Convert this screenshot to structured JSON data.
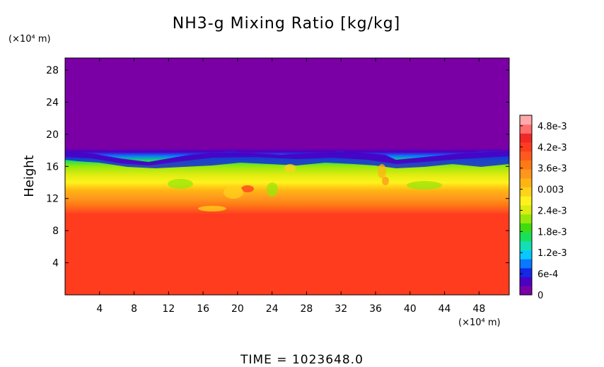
{
  "chart_data": {
    "type": "heatmap",
    "title": "NH3-g Mixing Ratio [kg/kg]",
    "xlabel": "",
    "ylabel": "Height",
    "x_unit_label": "(×10⁴ m)",
    "y_unit_label": "(×10⁴ m)",
    "xlim": [
      0,
      51.5
    ],
    "ylim": [
      0,
      29.5
    ],
    "x_ticks": [
      4,
      8,
      12,
      16,
      20,
      24,
      28,
      32,
      36,
      40,
      44,
      48
    ],
    "y_ticks": [
      4,
      8,
      12,
      16,
      20,
      24,
      28
    ],
    "x_tick_labels": [
      "4",
      "8",
      "12",
      "16",
      "20",
      "24",
      "28",
      "32",
      "36",
      "40",
      "44",
      "48"
    ],
    "y_tick_labels": [
      "4",
      "8",
      "12",
      "16",
      "20",
      "24",
      "28"
    ],
    "colorbar": {
      "levels": [
        0,
        0.0006,
        0.0012,
        0.0018,
        0.0024,
        0.003,
        0.0036,
        0.0042,
        0.0048
      ],
      "labels": [
        "0",
        "6e-4",
        "1.2e-3",
        "1.8e-3",
        "2.4e-3",
        "0.003",
        "3.6e-3",
        "4.2e-3",
        "4.8e-3"
      ],
      "max": 0.0051,
      "colors": [
        "#7a00a6",
        "#4b00c4",
        "#1428e6",
        "#0a78ff",
        "#08c8ff",
        "#12e0b4",
        "#18e05a",
        "#3fdc10",
        "#96e80a",
        "#dcec10",
        "#fff21c",
        "#ffd21c",
        "#ffb414",
        "#ff961e",
        "#ff7a14",
        "#ff5a1e",
        "#ff3c1e",
        "#f02828",
        "#ff6e6e",
        "#ffaaaa"
      ]
    },
    "profile": [
      {
        "height": 0,
        "value": 0.0043
      },
      {
        "height": 10,
        "value": 0.0043
      },
      {
        "height": 10.6,
        "value": 0.004
      },
      {
        "height": 11.2,
        "value": 0.0037
      },
      {
        "height": 12.0,
        "value": 0.0035
      },
      {
        "height": 13.0,
        "value": 0.0031
      },
      {
        "height": 14.0,
        "value": 0.0028
      },
      {
        "height": 15.0,
        "value": 0.0025
      },
      {
        "height": 16.0,
        "value": 0.0022
      },
      {
        "height": 16.7,
        "value": 0.0016
      },
      {
        "height": 17.3,
        "value": 0.0008
      },
      {
        "height": 17.8,
        "value": 0.0003
      },
      {
        "height": 18.3,
        "value": 0
      }
    ],
    "time_label": "TIME = 1023648.0"
  }
}
